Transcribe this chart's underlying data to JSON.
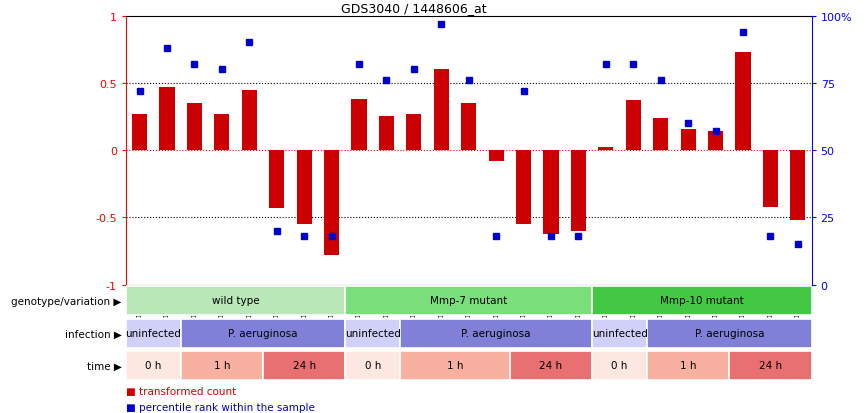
{
  "title": "GDS3040 / 1448606_at",
  "samples": [
    "GSM196062",
    "GSM196063",
    "GSM196064",
    "GSM196065",
    "GSM196066",
    "GSM196067",
    "GSM196068",
    "GSM196069",
    "GSM196070",
    "GSM196071",
    "GSM196072",
    "GSM196073",
    "GSM196074",
    "GSM196075",
    "GSM196076",
    "GSM196077",
    "GSM196078",
    "GSM196079",
    "GSM196080",
    "GSM196081",
    "GSM196082",
    "GSM196083",
    "GSM196084",
    "GSM196085",
    "GSM196086"
  ],
  "red_bars": [
    0.27,
    0.47,
    0.35,
    0.27,
    0.45,
    -0.43,
    -0.55,
    -0.78,
    0.38,
    0.25,
    0.27,
    0.6,
    0.35,
    -0.08,
    -0.55,
    -0.62,
    -0.6,
    0.02,
    0.37,
    0.24,
    0.16,
    0.14,
    0.73,
    -0.42,
    -0.52
  ],
  "blue_dots_pct": [
    72,
    88,
    82,
    80,
    90,
    20,
    18,
    18,
    82,
    76,
    80,
    97,
    76,
    18,
    72,
    18,
    18,
    82,
    82,
    76,
    60,
    57,
    94,
    18,
    15
  ],
  "genotype_groups": [
    {
      "label": "wild type",
      "start": 0,
      "end": 8,
      "color": "#b8e8b8"
    },
    {
      "label": "Mmp-7 mutant",
      "start": 8,
      "end": 17,
      "color": "#7adf7a"
    },
    {
      "label": "Mmp-10 mutant",
      "start": 17,
      "end": 25,
      "color": "#44c844"
    }
  ],
  "infection_groups": [
    {
      "label": "uninfected",
      "start": 0,
      "end": 2,
      "color": "#d0d0f8"
    },
    {
      "label": "P. aeruginosa",
      "start": 2,
      "end": 8,
      "color": "#8080d8"
    },
    {
      "label": "uninfected",
      "start": 8,
      "end": 10,
      "color": "#d0d0f8"
    },
    {
      "label": "P. aeruginosa",
      "start": 10,
      "end": 17,
      "color": "#8080d8"
    },
    {
      "label": "uninfected",
      "start": 17,
      "end": 19,
      "color": "#d0d0f8"
    },
    {
      "label": "P. aeruginosa",
      "start": 19,
      "end": 25,
      "color": "#8080d8"
    }
  ],
  "time_groups": [
    {
      "label": "0 h",
      "start": 0,
      "end": 2,
      "color": "#fce8e0"
    },
    {
      "label": "1 h",
      "start": 2,
      "end": 5,
      "color": "#f8b0a0"
    },
    {
      "label": "24 h",
      "start": 5,
      "end": 8,
      "color": "#e87070"
    },
    {
      "label": "0 h",
      "start": 8,
      "end": 10,
      "color": "#fce8e0"
    },
    {
      "label": "1 h",
      "start": 10,
      "end": 14,
      "color": "#f8b0a0"
    },
    {
      "label": "24 h",
      "start": 14,
      "end": 17,
      "color": "#e87070"
    },
    {
      "label": "0 h",
      "start": 17,
      "end": 19,
      "color": "#fce8e0"
    },
    {
      "label": "1 h",
      "start": 19,
      "end": 22,
      "color": "#f8b0a0"
    },
    {
      "label": "24 h",
      "start": 22,
      "end": 25,
      "color": "#e87070"
    }
  ],
  "legend_items": [
    {
      "label": "transformed count",
      "color": "#cc0000"
    },
    {
      "label": "percentile rank within the sample",
      "color": "#0000cc"
    }
  ],
  "row_labels": [
    "genotype/variation",
    "infection",
    "time"
  ],
  "bar_color": "#cc0000",
  "dot_color": "#0000cc",
  "sample_bg_color": "#d8d8d8",
  "ylim_left": [
    -1.0,
    1.0
  ],
  "ylim_right": [
    0,
    100
  ],
  "yticks_left": [
    -1.0,
    -0.5,
    0.0,
    0.5,
    1.0
  ],
  "yticks_right": [
    0,
    25,
    50,
    75,
    100
  ],
  "background_color": "#ffffff"
}
